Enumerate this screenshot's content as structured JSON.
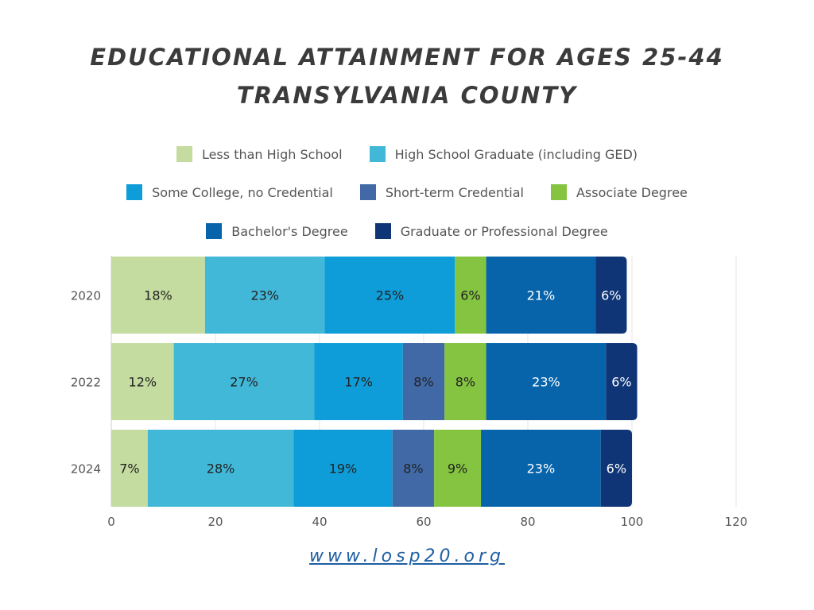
{
  "title": {
    "line1": "EDUCATIONAL ATTAINMENT FOR AGES 25-44",
    "line2": "TRANSYLVANIA COUNTY"
  },
  "footer": {
    "url": "www.losp20.org"
  },
  "chart_data": {
    "type": "bar",
    "orientation": "horizontal",
    "stacked": true,
    "categories": [
      "2020",
      "2022",
      "2024"
    ],
    "series": [
      {
        "name": "Less than High School",
        "color": "#c5dca0",
        "values": [
          18,
          12,
          7
        ],
        "labels": [
          "18%",
          "12%",
          "7%"
        ]
      },
      {
        "name": "High School Graduate (including GED)",
        "color": "#42b8d9",
        "values": [
          23,
          27,
          28
        ],
        "labels": [
          "23%",
          "27%",
          "28%"
        ]
      },
      {
        "name": "Some College, no Credential",
        "color": "#0e9dd8",
        "values": [
          25,
          17,
          19
        ],
        "labels": [
          "25%",
          "17%",
          "19%"
        ]
      },
      {
        "name": "Short-term Credential",
        "color": "#4169a6",
        "values": [
          0,
          8,
          8
        ],
        "labels": [
          "",
          "8%",
          "8%"
        ]
      },
      {
        "name": "Associate Degree",
        "color": "#84c440",
        "values": [
          6,
          8,
          9
        ],
        "labels": [
          "6%",
          "8%",
          "9%"
        ]
      },
      {
        "name": "Bachelor's Degree",
        "color": "#0764ab",
        "values": [
          21,
          23,
          23
        ],
        "labels": [
          "21%",
          "23%",
          "23%"
        ]
      },
      {
        "name": "Graduate or Professional Degree",
        "color": "#0f3577",
        "values": [
          6,
          6,
          6
        ],
        "labels": [
          "6%",
          "6%",
          "6%"
        ]
      }
    ],
    "xlim": [
      0,
      120
    ],
    "xticks": [
      "0",
      "20",
      "40",
      "60",
      "80",
      "100",
      "120"
    ],
    "grid": true,
    "legend_position": "top-center",
    "label_text_colors": [
      "#222222",
      "#222222",
      "#222222",
      "#222222",
      "#222222",
      "#ffffff",
      "#ffffff"
    ]
  }
}
